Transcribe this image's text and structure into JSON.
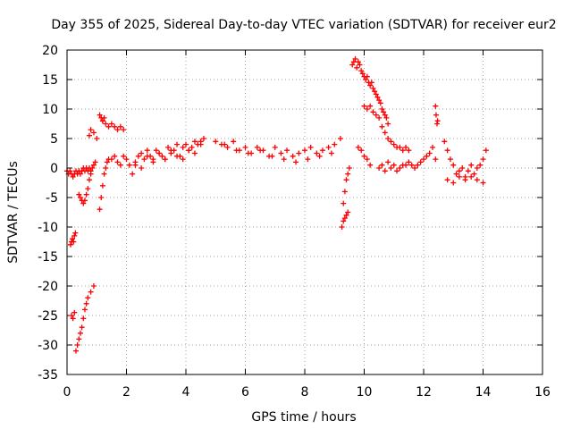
{
  "chart_data": {
    "type": "scatter",
    "title": "Day 355 of 2025, Sidereal Day-to-day VTEC variation (SDTVAR) for receiver eur2",
    "xlabel": "GPS time / hours",
    "ylabel": "SDTVAR / TECUs",
    "xlim": [
      0,
      16
    ],
    "ylim": [
      -35,
      20
    ],
    "xticks": [
      "0",
      "2",
      "4",
      "6",
      "8",
      "10",
      "12",
      "14",
      "16"
    ],
    "yticks": [
      "20",
      "15",
      "10",
      "5",
      "0",
      "-5",
      "-10",
      "-15",
      "-20",
      "-25",
      "-30",
      "-35"
    ],
    "grid": true,
    "marker": "+",
    "color": "#ff0000",
    "series": [
      {
        "name": "eur2",
        "x": [
          0.0,
          0.05,
          0.1,
          0.15,
          0.2,
          0.25,
          0.3,
          0.35,
          0.4,
          0.45,
          0.5,
          0.55,
          0.6,
          0.65,
          0.7,
          0.75,
          0.8,
          0.85,
          0.9,
          0.95,
          0.12,
          0.15,
          0.18,
          0.22,
          0.25,
          0.28,
          0.15,
          0.2,
          0.25,
          0.3,
          0.35,
          0.4,
          0.45,
          0.5,
          0.55,
          0.6,
          0.65,
          0.7,
          0.8,
          0.9,
          0.4,
          0.45,
          0.5,
          0.55,
          0.6,
          0.65,
          0.7,
          0.75,
          0.8,
          0.75,
          0.8,
          0.9,
          1.0,
          1.1,
          1.15,
          1.2,
          1.25,
          1.3,
          1.35,
          1.4,
          1.1,
          1.15,
          1.2,
          1.25,
          1.2,
          1.3,
          1.4,
          1.5,
          1.6,
          1.7,
          1.8,
          1.9,
          1.5,
          1.6,
          1.7,
          1.8,
          1.9,
          2.0,
          2.1,
          2.2,
          2.3,
          2.4,
          2.5,
          2.6,
          2.7,
          2.8,
          2.9,
          3.0,
          3.1,
          3.2,
          3.3,
          3.4,
          3.5,
          3.6,
          3.7,
          3.8,
          3.9,
          4.0,
          4.1,
          4.2,
          4.3,
          4.4,
          4.5,
          4.6,
          2.3,
          2.5,
          2.7,
          2.9,
          3.1,
          3.3,
          3.5,
          3.7,
          3.9,
          4.1,
          4.3,
          4.5,
          5.0,
          5.2,
          5.4,
          5.6,
          5.8,
          6.0,
          6.2,
          6.4,
          6.6,
          6.8,
          7.0,
          7.2,
          7.4,
          7.6,
          7.8,
          8.0,
          8.2,
          8.4,
          8.6,
          8.8,
          9.0,
          9.2,
          5.3,
          5.7,
          6.1,
          6.5,
          6.9,
          7.3,
          7.7,
          8.1,
          8.5,
          8.9,
          9.25,
          9.3,
          9.35,
          9.4,
          9.45,
          9.3,
          9.35,
          9.4,
          9.45,
          9.5,
          9.6,
          9.65,
          9.7,
          9.75,
          9.8,
          9.85,
          9.9,
          9.95,
          10.0,
          10.05,
          10.1,
          10.15,
          10.2,
          10.25,
          10.3,
          10.35,
          10.4,
          10.45,
          10.5,
          10.55,
          10.6,
          10.65,
          10.7,
          10.75,
          10.8,
          10.0,
          10.1,
          10.2,
          10.3,
          10.4,
          10.5,
          10.6,
          10.7,
          10.8,
          10.9,
          11.0,
          11.1,
          11.2,
          11.3,
          11.4,
          11.5,
          9.8,
          9.9,
          10.0,
          10.1,
          10.2,
          10.5,
          10.6,
          10.7,
          10.8,
          10.9,
          11.0,
          11.1,
          11.2,
          11.3,
          11.4,
          11.5,
          11.6,
          11.7,
          11.8,
          11.9,
          12.0,
          12.1,
          12.2,
          12.3,
          12.4,
          12.4,
          12.42,
          12.45,
          12.47,
          12.7,
          12.8,
          12.9,
          13.0,
          13.1,
          13.2,
          13.3,
          13.4,
          13.5,
          13.6,
          13.7,
          13.8,
          13.9,
          14.0,
          14.1,
          12.8,
          13.0,
          13.2,
          13.4,
          13.6,
          13.8,
          14.0
        ],
        "y": [
          -0.5,
          -1,
          -0.5,
          -1,
          -1.5,
          -1,
          -0.5,
          -1,
          -0.5,
          -1,
          -0.5,
          0,
          -0.5,
          0,
          -0.5,
          0,
          -0.5,
          0,
          0.5,
          1,
          -13,
          -12.5,
          -12,
          -12.5,
          -11.5,
          -11,
          -25,
          -25.5,
          -24.5,
          -31,
          -30,
          -29,
          -28,
          -27,
          -25.5,
          -24,
          -23,
          -22,
          -21,
          -20,
          -4.5,
          -5,
          -5.5,
          -6,
          -5.5,
          -4.5,
          -3.5,
          -2,
          -1,
          5.5,
          6.5,
          6,
          5,
          -7,
          -5,
          -3,
          -1,
          0,
          1,
          1.5,
          9,
          8.5,
          8,
          8.5,
          8,
          7.5,
          7,
          7.5,
          7,
          6.5,
          7,
          6.5,
          1.5,
          2,
          1,
          0.5,
          2,
          1.5,
          0.5,
          -1,
          0.5,
          2,
          2.5,
          1.5,
          3,
          2,
          1.5,
          3,
          2.5,
          2,
          1.5,
          3.5,
          2.5,
          3,
          4,
          2,
          3.5,
          4,
          3,
          3.5,
          4.5,
          4,
          4.5,
          5,
          1,
          0,
          2,
          1,
          2.5,
          1.5,
          3,
          2,
          1.5,
          3,
          2.5,
          4,
          4.5,
          4,
          3.5,
          4.5,
          3,
          3.5,
          2.5,
          3.5,
          3,
          2,
          3.5,
          2.5,
          3,
          2,
          2.5,
          3,
          3.5,
          2.5,
          3,
          3.5,
          4,
          5,
          4,
          3,
          2.5,
          3,
          2,
          1.5,
          1,
          1.5,
          2,
          2.5,
          -10,
          -9,
          -8.5,
          -8,
          -7.5,
          -6,
          -4,
          -2,
          -1,
          0,
          17.5,
          18,
          18.5,
          17,
          18,
          17.5,
          16.5,
          16,
          15.5,
          15,
          15.5,
          14.5,
          14,
          14.5,
          13.5,
          13,
          12.5,
          12,
          11.5,
          11,
          10,
          9.5,
          9,
          8.5,
          7.5,
          10.5,
          10,
          10.5,
          9.5,
          9,
          8.5,
          7,
          6,
          5,
          4.5,
          4,
          3.5,
          3.5,
          3,
          3.5,
          3,
          3.5,
          3,
          2,
          1.5,
          0.5,
          0,
          0.5,
          -0.5,
          1,
          0,
          0.5,
          -0.5,
          0,
          0.5,
          0.5,
          1,
          0.5,
          0,
          0.5,
          1,
          1.5,
          2,
          2.5,
          3.5,
          1.5,
          10.5,
          9,
          7.5,
          8,
          4.5,
          3,
          1.5,
          0.5,
          -1,
          -0.5,
          0,
          -1.5,
          -0.5,
          0.5,
          -1,
          0,
          0.5,
          1.5,
          3,
          -2,
          -2.5,
          -1.5,
          -2,
          -1.5,
          -2,
          -2.5
        ]
      }
    ]
  }
}
